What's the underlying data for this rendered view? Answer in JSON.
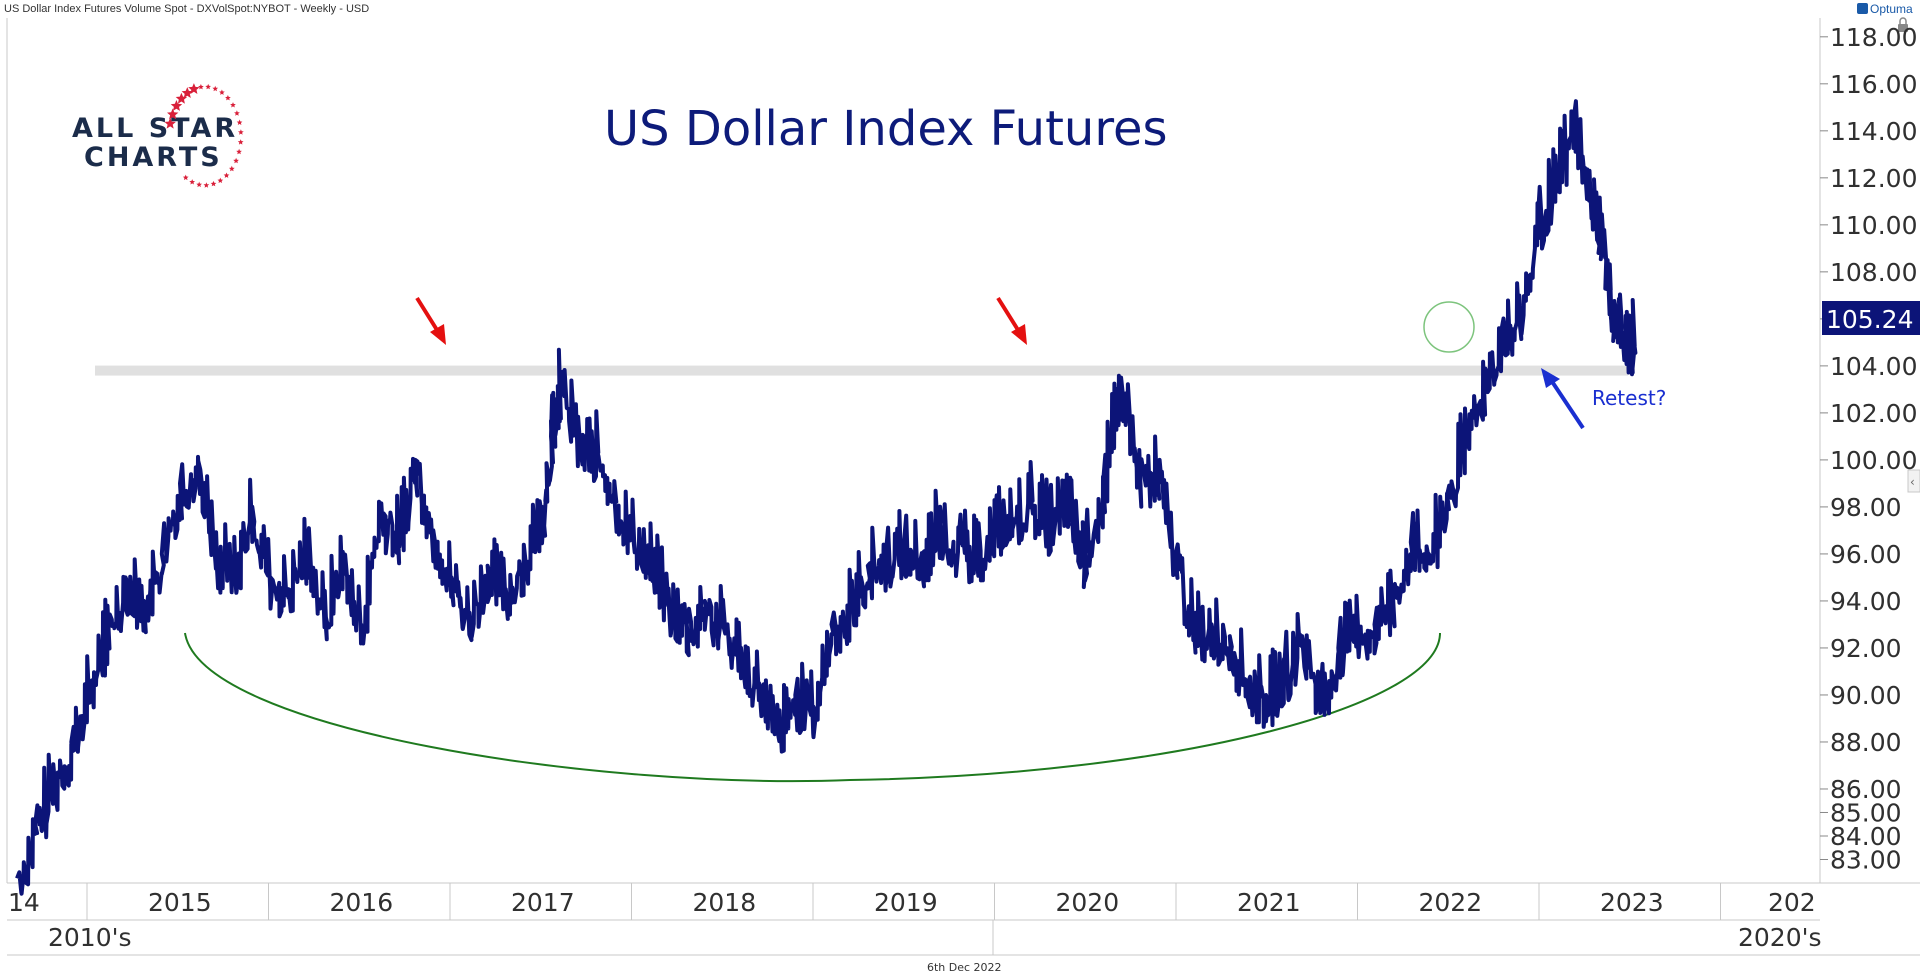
{
  "header": {
    "left": "US Dollar Index Futures Volume Spot - DXVolSpot:NYBOT - Weekly - USD",
    "brand": "Optuma",
    "footer_date": "6th Dec 2022"
  },
  "logo": {
    "line1": "ALL STAR",
    "line2": "CHARTS"
  },
  "colors": {
    "price": "#0c1478",
    "resistance": "#e0e0e0",
    "arrow_red": "#e41010",
    "arrow_blue": "#1a2fd0",
    "arc": "#1f7a1f",
    "circle": "#7dc47d"
  },
  "chart_data": {
    "type": "line",
    "title": "US Dollar Index Futures",
    "xlabel": "",
    "ylabel": "",
    "ylim": [
      82.0,
      118.8
    ],
    "y_ticks": [
      "118.00",
      "116.00",
      "114.00",
      "112.00",
      "110.00",
      "108.00",
      "106.00",
      "104.00",
      "102.00",
      "100.00",
      "98.00",
      "96.00",
      "94.00",
      "92.00",
      "90.00",
      "88.00",
      "86.00",
      "85.00",
      "84.00",
      "83.00"
    ],
    "x_year_labels": [
      "14",
      "2015",
      "2016",
      "2017",
      "2018",
      "2019",
      "2020",
      "2021",
      "2022",
      "2023",
      "202"
    ],
    "x_decade_labels": [
      "2010's",
      "2020's"
    ],
    "last_price": "105.24",
    "resistance_level": 103.8,
    "series": [
      {
        "x": [
          2014.0,
          2014.1,
          2014.2,
          2014.3,
          2014.4,
          2014.5,
          2014.6,
          2014.7,
          2014.8,
          2014.9,
          2015.0,
          2015.1,
          2015.2,
          2015.3,
          2015.4,
          2015.5,
          2015.6,
          2015.7,
          2015.8,
          2015.9,
          2016.0,
          2016.1,
          2016.2,
          2016.3,
          2016.4,
          2016.5,
          2016.6,
          2016.7,
          2016.8,
          2016.9,
          2016.95,
          2017.0,
          2017.1,
          2017.2,
          2017.3,
          2017.4,
          2017.5,
          2017.6,
          2017.7,
          2017.8,
          2017.9,
          2018.0,
          2018.1,
          2018.2,
          2018.3,
          2018.4,
          2018.5,
          2018.6,
          2018.7,
          2018.8,
          2018.9,
          2019.0,
          2019.1,
          2019.2,
          2019.3,
          2019.4,
          2019.5,
          2019.6,
          2019.7,
          2019.8,
          2019.85,
          2019.9,
          2020.0,
          2020.1,
          2020.2,
          2020.3,
          2020.4,
          2020.5,
          2020.6,
          2020.7,
          2020.8,
          2020.9,
          2021.0,
          2021.1,
          2021.2,
          2021.3,
          2021.4,
          2021.5,
          2021.6,
          2021.7,
          2021.8,
          2021.9,
          2022.0,
          2022.1,
          2022.2,
          2022.3,
          2022.4,
          2022.5,
          2022.6,
          2022.7,
          2022.75,
          2022.8,
          2022.85,
          2022.9,
          2022.93
        ],
        "values": [
          82.2,
          84.5,
          86.5,
          88.0,
          90.5,
          93.0,
          95.0,
          94.0,
          96.0,
          99.0,
          100.0,
          96.0,
          95.5,
          98.0,
          95.0,
          94.5,
          96.5,
          93.5,
          96.0,
          93.0,
          98.0,
          97.0,
          100.0,
          97.0,
          95.0,
          93.5,
          95.5,
          94.5,
          96.0,
          98.0,
          101.0,
          103.5,
          101.0,
          100.5,
          98.5,
          97.0,
          96.0,
          94.0,
          93.0,
          94.0,
          93.0,
          92.0,
          90.5,
          88.5,
          90.0,
          89.5,
          93.0,
          94.0,
          95.5,
          96.0,
          96.5,
          96.0,
          97.5,
          96.5,
          96.0,
          97.5,
          97.5,
          98.5,
          97.5,
          98.5,
          97.0,
          96.0,
          99.0,
          103.5,
          99.5,
          99.5,
          96.0,
          93.0,
          93.0,
          92.5,
          90.5,
          90.0,
          91.0,
          92.5,
          90.0,
          92.0,
          93.0,
          93.0,
          94.5,
          96.5,
          96.0,
          98.5,
          101.0,
          103.5,
          105.5,
          106.0,
          110.0,
          112.0,
          114.5,
          111.0,
          110.0,
          107.0,
          105.8,
          105.0,
          105.24
        ]
      }
    ]
  }
}
